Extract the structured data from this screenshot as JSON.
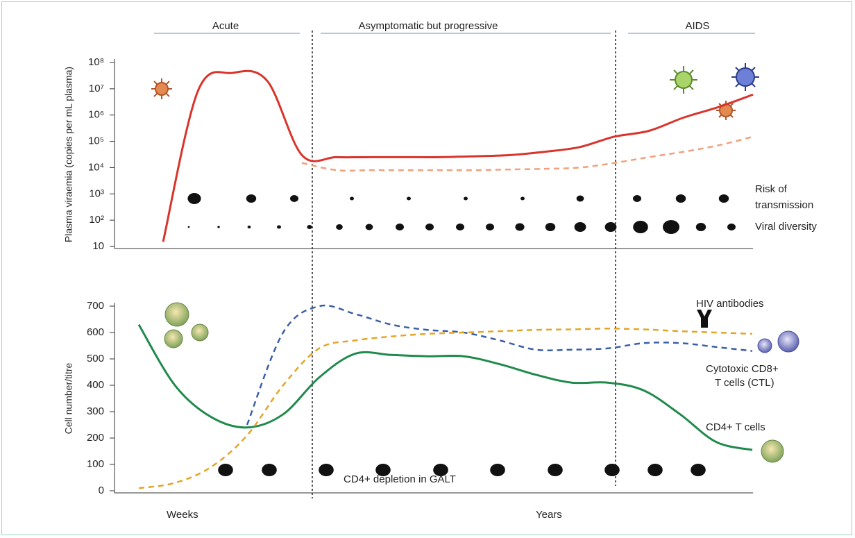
{
  "chart_data": [
    {
      "type": "line",
      "log_scale": true,
      "phases": [
        "Acute",
        "Asymptomatic but progressive",
        "AIDS"
      ],
      "y_label": "Plasma viraemia (copies per mL plasma)",
      "annotations": [
        "Risk of",
        "transmission",
        "Viral diversity"
      ],
      "categories": [
        null,
        null,
        null,
        null,
        null,
        null,
        null,
        null,
        null,
        null,
        null,
        null,
        null,
        null,
        null,
        null,
        null,
        null
      ],
      "ylim": [
        10,
        100000000
      ],
      "yticks": [
        10,
        {
          "value": 100,
          "label": "10²"
        },
        {
          "value": 1000,
          "label": "10³"
        },
        {
          "value": 10000,
          "label": "10⁴"
        },
        {
          "value": 100000,
          "label": "10⁵"
        },
        {
          "value": 1000000,
          "label": "10⁶"
        },
        {
          "value": 10000000,
          "label": "10⁷"
        },
        {
          "value": 100000000,
          "label": "10⁸"
        }
      ],
      "series": [
        {
          "color": "#d9342b",
          "dashed": false,
          "values": [
            15,
            8000000,
            40000000,
            20000000,
            30000,
            25000,
            25000,
            25000,
            25000,
            27000,
            30000,
            40000,
            60000,
            150000,
            250000,
            800000,
            2000000,
            6000000
          ]
        },
        {
          "color": "#f0a07a",
          "dashed": true,
          "values": [
            null,
            null,
            null,
            null,
            15000,
            8000,
            8000,
            8000,
            8000,
            8000,
            8500,
            9000,
            10000,
            15000,
            25000,
            40000,
            70000,
            150000
          ]
        }
      ]
    },
    {
      "type": "line",
      "log_scale": false,
      "y_label": "Cell number/titre",
      "annotations": [
        "HIV  antibodies",
        "Cytotoxic CD8+",
        "T cells (CTL)",
        "CD4+ T cells",
        "CD4+ depletion in GALT",
        "Weeks",
        "Years"
      ],
      "categories": [
        null,
        null,
        null,
        null,
        null,
        null,
        null,
        null,
        null,
        null,
        null,
        null,
        null,
        null,
        null,
        null,
        null,
        null
      ],
      "ylim": [
        0,
        700
      ],
      "yticks": [
        0,
        100,
        200,
        300,
        400,
        500,
        600,
        700
      ],
      "series": [
        {
          "color": "#1f8a4c",
          "dashed": false,
          "values": [
            630,
            400,
            280,
            240,
            290,
            430,
            520,
            515,
            510,
            510,
            480,
            440,
            410,
            410,
            380,
            290,
            185,
            155
          ]
        },
        {
          "color": "#3a5fa8",
          "dashed": true,
          "values": [
            null,
            null,
            null,
            250,
            600,
            700,
            670,
            630,
            610,
            600,
            570,
            535,
            535,
            540,
            560,
            560,
            545,
            530
          ]
        },
        {
          "color": "#e3a526",
          "dashed": true,
          "values": [
            10,
            30,
            90,
            210,
            400,
            540,
            570,
            585,
            595,
            600,
            605,
            610,
            612,
            615,
            612,
            605,
            600,
            595
          ]
        }
      ]
    }
  ]
}
